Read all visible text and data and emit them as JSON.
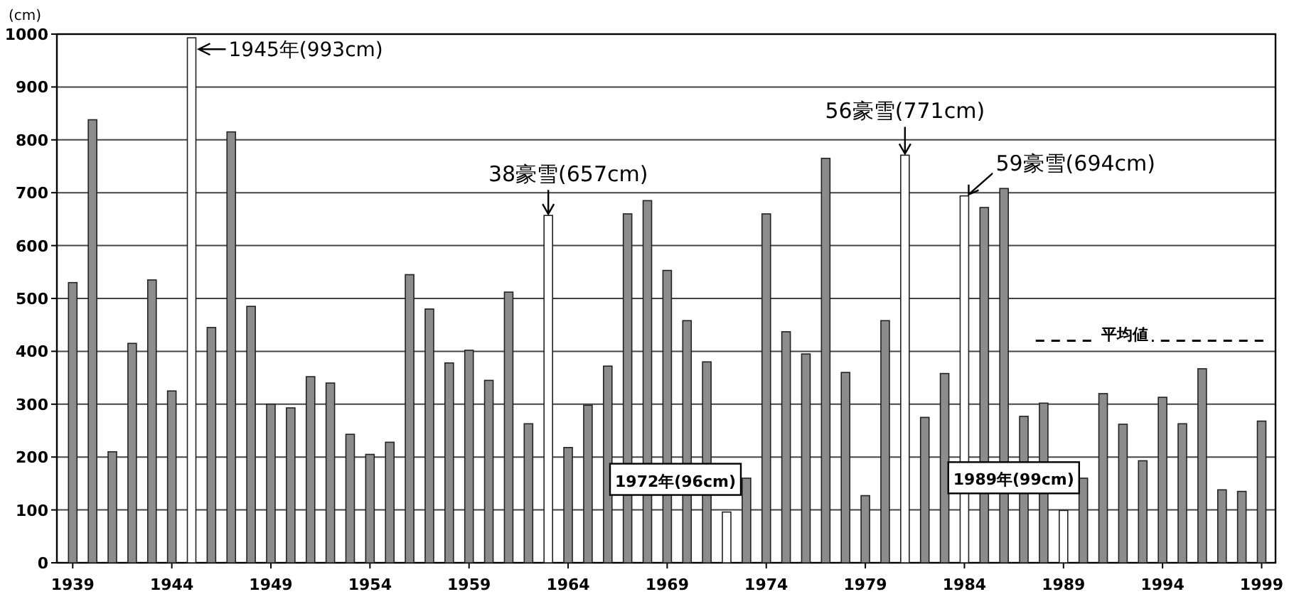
{
  "chart_data": {
    "type": "bar",
    "ylabel": "(cm)",
    "x": [
      1939,
      1940,
      1941,
      1942,
      1943,
      1944,
      1945,
      1946,
      1947,
      1948,
      1949,
      1950,
      1951,
      1952,
      1953,
      1954,
      1955,
      1956,
      1957,
      1958,
      1959,
      1960,
      1961,
      1962,
      1963,
      1964,
      1965,
      1966,
      1967,
      1968,
      1969,
      1970,
      1971,
      1972,
      1973,
      1974,
      1975,
      1976,
      1977,
      1978,
      1979,
      1980,
      1981,
      1982,
      1983,
      1984,
      1985,
      1986,
      1987,
      1988,
      1989,
      1990,
      1991,
      1992,
      1993,
      1994,
      1995,
      1996,
      1997,
      1998,
      1999
    ],
    "values": [
      530,
      838,
      210,
      415,
      535,
      325,
      993,
      445,
      815,
      485,
      300,
      293,
      352,
      340,
      243,
      205,
      228,
      545,
      480,
      378,
      402,
      345,
      512,
      263,
      657,
      218,
      298,
      372,
      660,
      685,
      553,
      458,
      380,
      96,
      160,
      660,
      437,
      395,
      765,
      360,
      127,
      458,
      771,
      275,
      358,
      694,
      672,
      708,
      277,
      302,
      99,
      160,
      320,
      262,
      193,
      313,
      263,
      367,
      138,
      135,
      268
    ],
    "colors": [
      "#8c8c8c",
      "#8c8c8c",
      "#8c8c8c",
      "#8c8c8c",
      "#8c8c8c",
      "#8c8c8c",
      "#ffffff",
      "#8c8c8c",
      "#8c8c8c",
      "#8c8c8c",
      "#8c8c8c",
      "#8c8c8c",
      "#8c8c8c",
      "#8c8c8c",
      "#8c8c8c",
      "#8c8c8c",
      "#8c8c8c",
      "#8c8c8c",
      "#8c8c8c",
      "#8c8c8c",
      "#8c8c8c",
      "#8c8c8c",
      "#8c8c8c",
      "#8c8c8c",
      "#ffffff",
      "#8c8c8c",
      "#8c8c8c",
      "#8c8c8c",
      "#8c8c8c",
      "#8c8c8c",
      "#8c8c8c",
      "#8c8c8c",
      "#8c8c8c",
      "#ffffff",
      "#8c8c8c",
      "#8c8c8c",
      "#8c8c8c",
      "#8c8c8c",
      "#8c8c8c",
      "#8c8c8c",
      "#8c8c8c",
      "#8c8c8c",
      "#ffffff",
      "#8c8c8c",
      "#8c8c8c",
      "#ffffff",
      "#8c8c8c",
      "#8c8c8c",
      "#8c8c8c",
      "#8c8c8c",
      "#ffffff",
      "#8c8c8c",
      "#8c8c8c",
      "#8c8c8c",
      "#8c8c8c",
      "#8c8c8c",
      "#8c8c8c",
      "#8c8c8c",
      "#8c8c8c",
      "#8c8c8c",
      "#8c8c8c"
    ],
    "xlim": [
      1938.2,
      1999.7
    ],
    "xticks": [
      1939,
      1944,
      1949,
      1954,
      1959,
      1964,
      1969,
      1974,
      1979,
      1984,
      1989,
      1994,
      1999
    ],
    "ylim": [
      0,
      1000
    ],
    "yticks": [
      0,
      100,
      200,
      300,
      400,
      500,
      600,
      700,
      800,
      900,
      1000
    ],
    "grid": "y",
    "ref_lines": [
      {
        "axis": "y",
        "value": 420,
        "label": "平均値",
        "line_style": "dashed",
        "color": "#000000"
      }
    ],
    "annotations": [
      {
        "text": "1945年(993cm)",
        "x": 1945,
        "y": 993
      },
      {
        "text": "38豪雪(657cm)",
        "x": 1963,
        "y": 657
      },
      {
        "text": "1972年(96cm)",
        "x": 1972,
        "y": 96
      },
      {
        "text": "56豪雪(771cm)",
        "x": 1981,
        "y": 771
      },
      {
        "text": "59豪雪(694cm)",
        "x": 1984,
        "y": 694
      },
      {
        "text": "1989年(99cm)",
        "x": 1989,
        "y": 99
      }
    ]
  }
}
